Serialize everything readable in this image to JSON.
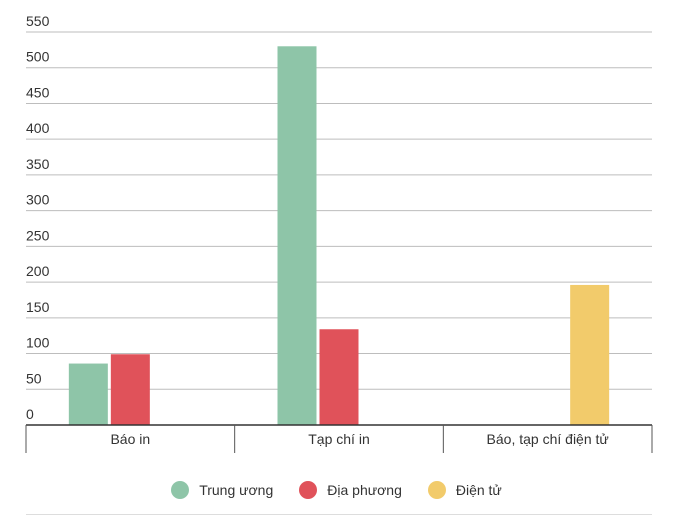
{
  "chart_data": {
    "type": "bar",
    "categories": [
      "Báo in",
      "Tạp chí in",
      "Báo, tạp chí điện tử"
    ],
    "series": [
      {
        "name": "Trung ương",
        "color": "#8ec5a8",
        "values": [
          86,
          530,
          null
        ]
      },
      {
        "name": "Địa phương",
        "color": "#e0525a",
        "values": [
          99,
          134,
          null
        ]
      },
      {
        "name": "Điện tử",
        "color": "#f2cb6b",
        "values": [
          null,
          null,
          196
        ]
      }
    ],
    "y_ticks": [
      0,
      50,
      100,
      150,
      200,
      250,
      300,
      350,
      400,
      450,
      500,
      550
    ],
    "ylim": [
      0,
      550
    ],
    "grid": true,
    "legend_position": "bottom-center"
  }
}
